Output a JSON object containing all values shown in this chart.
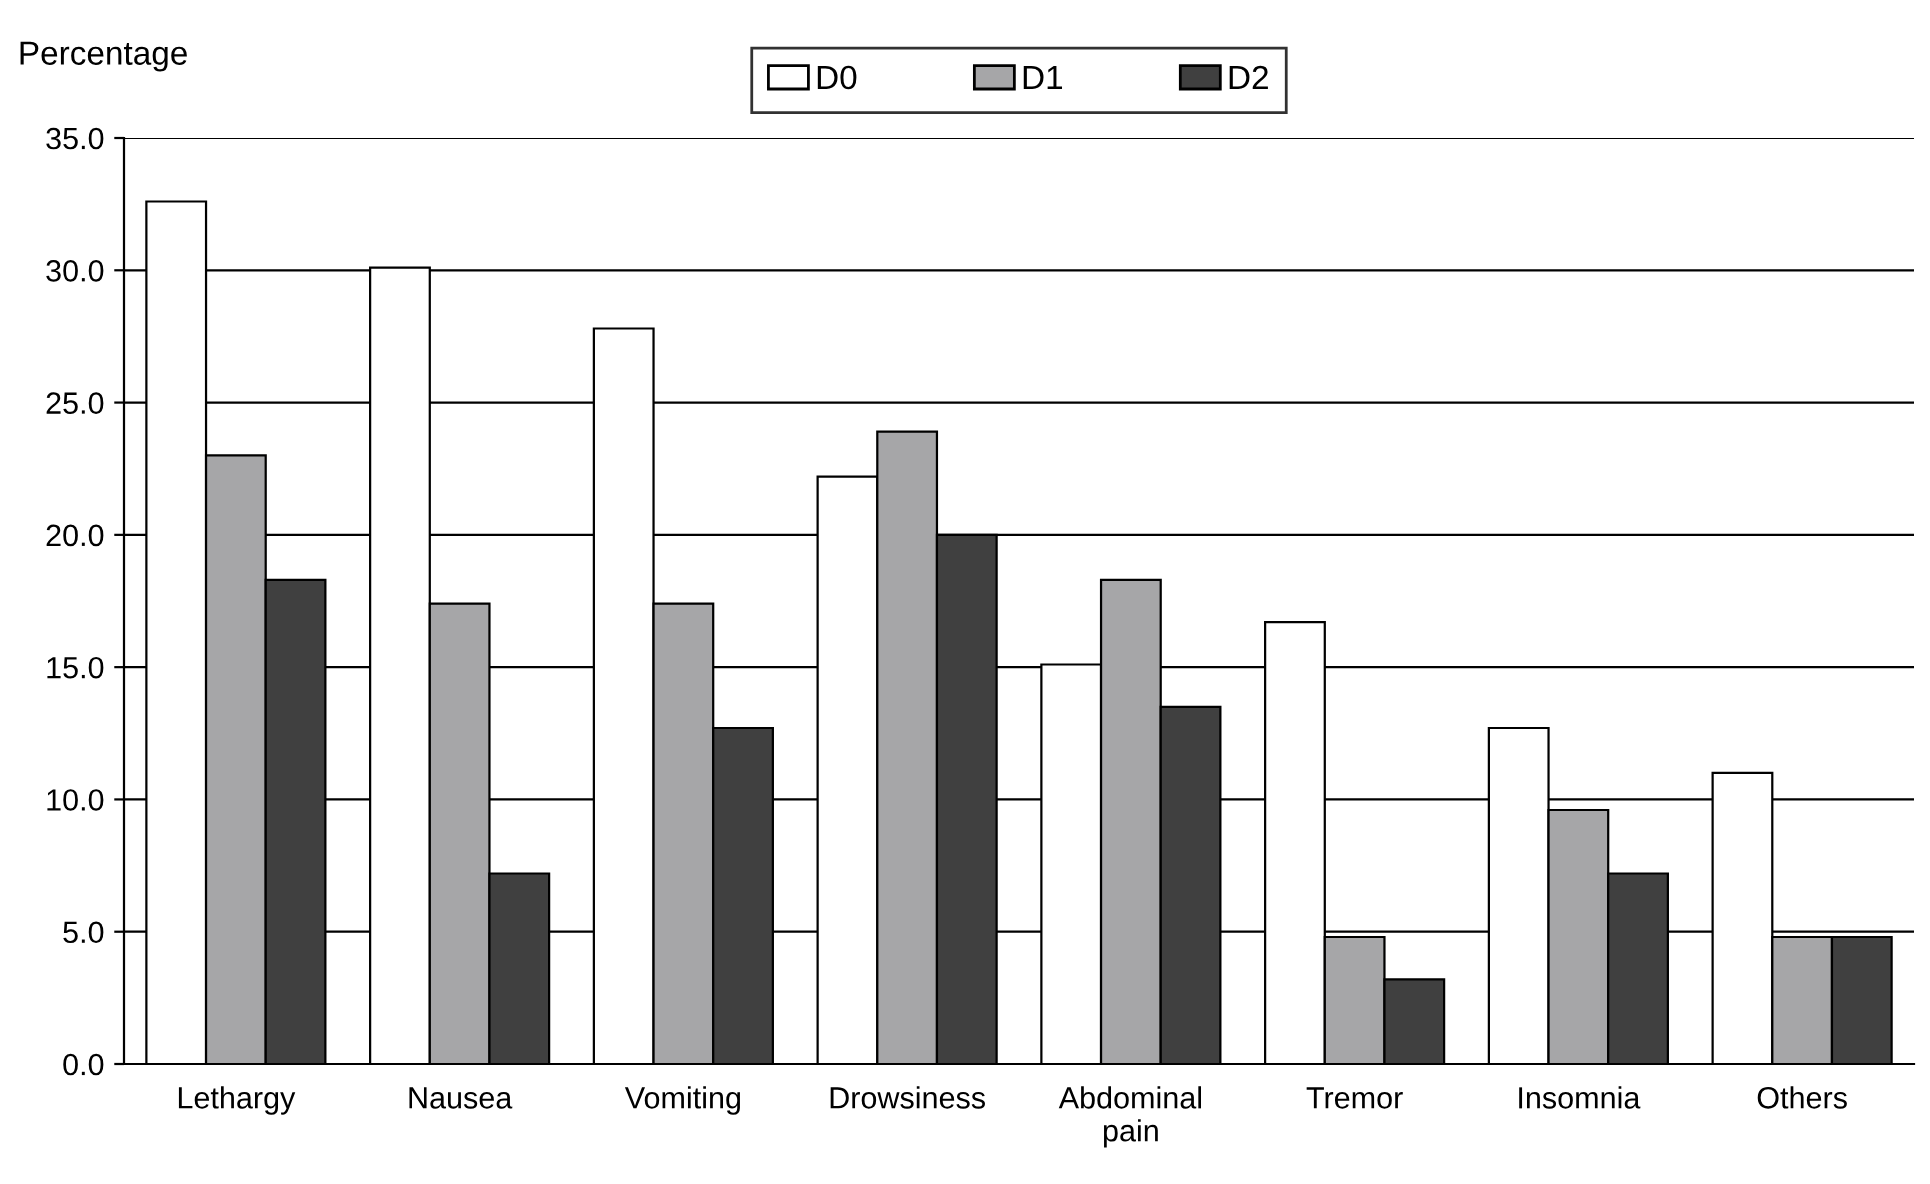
{
  "chart_data": {
    "type": "bar",
    "ylabel": "Percentage",
    "categories": [
      "Lethargy",
      "Nausea",
      "Vomiting",
      "Drowsiness",
      "Abdominal\npain",
      "Tremor",
      "Insomnia",
      "Others"
    ],
    "series": [
      {
        "name": "D0",
        "color": "#ffffff",
        "values": [
          32.6,
          30.1,
          27.8,
          22.2,
          15.1,
          16.7,
          12.7,
          11.0
        ]
      },
      {
        "name": "D1",
        "color": "#a6a6a8",
        "values": [
          23.0,
          17.4,
          17.4,
          23.9,
          18.3,
          4.8,
          9.6,
          4.8
        ]
      },
      {
        "name": "D2",
        "color": "#404040",
        "values": [
          18.3,
          7.2,
          12.7,
          20.0,
          13.5,
          3.2,
          7.2,
          4.8
        ]
      }
    ],
    "ylim": [
      0,
      35
    ],
    "yticks": [
      {
        "value": 0,
        "label": "0.0"
      },
      {
        "value": 5,
        "label": "5.0"
      },
      {
        "value": 10,
        "label": "10.0"
      },
      {
        "value": 15,
        "label": "15.0"
      },
      {
        "value": 20,
        "label": "20.0"
      },
      {
        "value": 25,
        "label": "25.0"
      },
      {
        "value": 30,
        "label": "30.0"
      },
      {
        "value": 35,
        "label": "35.0"
      }
    ],
    "grid": "y",
    "legend": "top"
  }
}
